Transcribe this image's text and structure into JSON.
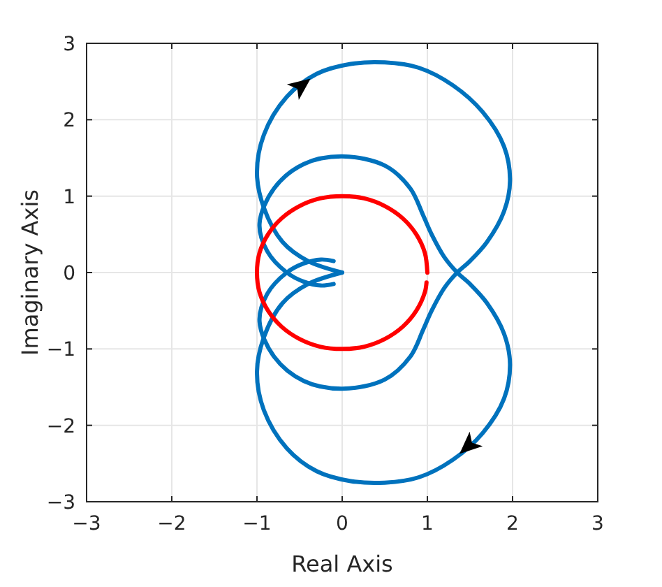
{
  "chart_data": {
    "type": "line",
    "xlabel": "Real Axis",
    "ylabel": "Imaginary Axis",
    "xlim": [
      -3,
      3
    ],
    "ylim": [
      -3,
      3
    ],
    "xticks": [
      -3,
      -2,
      -1,
      0,
      1,
      2,
      3
    ],
    "yticks": [
      -3,
      -2,
      -1,
      0,
      1,
      2,
      3
    ],
    "grid": true,
    "marker": "none",
    "line_style": "solid",
    "series": [
      {
        "color": "#0072bd",
        "x": [
          0,
          -0.4,
          -0.7,
          -0.92,
          -1.0,
          -0.92,
          -0.65,
          -0.3,
          0.1,
          0.5,
          0.9,
          1.3,
          1.65,
          1.9,
          1.97,
          1.9,
          1.7,
          1.5,
          1.35,
          1.2,
          1.05,
          0.95,
          0.8,
          0.5,
          0.0,
          -0.45,
          -0.8,
          -0.97,
          -0.88,
          -0.65,
          -0.45,
          -0.25,
          -0.1
        ],
        "values": [
          0,
          0.15,
          0.4,
          0.85,
          1.3,
          1.8,
          2.3,
          2.6,
          2.73,
          2.75,
          2.68,
          2.45,
          2.1,
          1.65,
          1.2,
          0.8,
          0.4,
          0.15,
          0,
          -0.2,
          -0.5,
          -0.75,
          -1.1,
          -1.4,
          -1.52,
          -1.42,
          -1.1,
          -0.64,
          -0.28,
          0,
          0.12,
          0.17,
          0.15
        ]
      },
      {
        "color": "#0072bd",
        "x": [
          -0.1,
          -0.25,
          -0.45,
          -0.65,
          -0.88,
          -0.97,
          -0.8,
          -0.45,
          0.0,
          0.5,
          0.8,
          0.95,
          1.05,
          1.2,
          1.35,
          1.5,
          1.7,
          1.9,
          1.97,
          1.9,
          1.65,
          1.3,
          0.9,
          0.5,
          0.1,
          -0.3,
          -0.65,
          -0.92,
          -1.0,
          -0.92,
          -0.7,
          -0.4,
          0
        ],
        "values": [
          -0.15,
          -0.17,
          -0.12,
          0,
          0.28,
          0.64,
          1.1,
          1.42,
          1.52,
          1.4,
          1.1,
          0.75,
          0.5,
          0.2,
          0,
          -0.15,
          -0.4,
          -0.8,
          -1.2,
          -1.65,
          -2.1,
          -2.45,
          -2.68,
          -2.75,
          -2.73,
          -2.6,
          -2.3,
          -1.8,
          -1.3,
          -0.85,
          -0.4,
          -0.15,
          0
        ]
      },
      {
        "color": "#ff0000",
        "x": [
          1,
          0.97,
          0.87,
          0.71,
          0.5,
          0.26,
          0,
          -0.26,
          -0.5,
          -0.71,
          -0.87,
          -0.97,
          -1,
          -0.97,
          -0.87,
          -0.71,
          -0.5,
          -0.26,
          0,
          0.26,
          0.5,
          0.71,
          0.87,
          0.97,
          0.99
        ],
        "values": [
          0,
          0.26,
          0.5,
          0.71,
          0.87,
          0.97,
          1,
          0.97,
          0.87,
          0.71,
          0.5,
          0.26,
          0,
          -0.26,
          -0.5,
          -0.71,
          -0.87,
          -0.97,
          -1,
          -0.97,
          -0.87,
          -0.71,
          -0.5,
          -0.26,
          -0.13
        ]
      }
    ]
  }
}
